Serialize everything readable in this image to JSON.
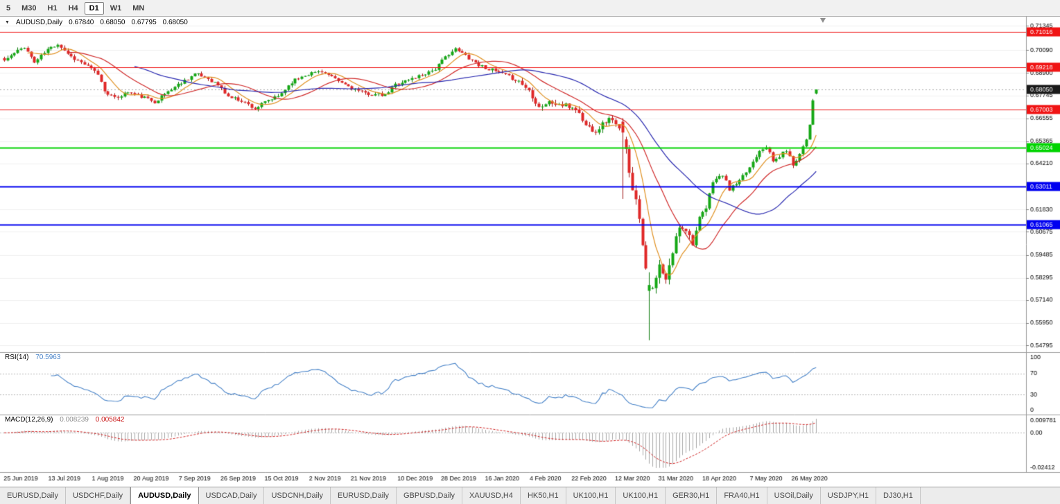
{
  "ui": {
    "toolbar": {
      "timeframes": [
        {
          "label": "5",
          "active": false
        },
        {
          "label": "M30",
          "active": false
        },
        {
          "label": "H1",
          "active": false
        },
        {
          "label": "H4",
          "active": false
        },
        {
          "label": "D1",
          "active": true
        },
        {
          "label": "W1",
          "active": false
        },
        {
          "label": "MN",
          "active": false
        }
      ]
    },
    "chart_title": {
      "symbol": "AUDUSD,Daily",
      "open": "0.67840",
      "high": "0.68050",
      "low": "0.67795",
      "close": "0.68050"
    },
    "rsi_title": {
      "name": "RSI(14)",
      "value": "70.5963"
    },
    "macd_title": {
      "name": "MACD(12,26,9)",
      "value_main": "0.008239",
      "value_signal": "0.005842"
    },
    "tabs": {
      "active_index": 2,
      "items": [
        "EURUSD,Daily",
        "USDCHF,Daily",
        "AUDUSD,Daily",
        "USDCAD,Daily",
        "USDCNH,Daily",
        "EURUSD,Daily",
        "GBPUSD,Daily",
        "XAUUSD,H4",
        "HK50,H1",
        "UK100,H1",
        "UK100,H1",
        "GER30,H1",
        "FRA40,H1",
        "USOil,Daily",
        "USDJPY,H1",
        "DJ30,H1"
      ]
    }
  },
  "chart_data": {
    "type": "candlestick",
    "symbol": "AUDUSD",
    "timeframe": "Daily",
    "main": {
      "price_range": [
        0.5455,
        0.7175
      ],
      "y_axis_labels": [
        {
          "text": "0.71345",
          "value": 0.71345
        },
        {
          "text": "0.70090",
          "value": 0.7009
        },
        {
          "text": "0.68900",
          "value": 0.689
        },
        {
          "text": "0.67745",
          "value": 0.67745
        },
        {
          "text": "0.66555",
          "value": 0.66555
        },
        {
          "text": "0.65365",
          "value": 0.65365
        },
        {
          "text": "0.64210",
          "value": 0.6421
        },
        {
          "text": "0.61830",
          "value": 0.6183
        },
        {
          "text": "0.60675",
          "value": 0.60675
        },
        {
          "text": "0.59485",
          "value": 0.59485
        },
        {
          "text": "0.58295",
          "value": 0.58295
        },
        {
          "text": "0.57140",
          "value": 0.5714
        },
        {
          "text": "0.55950",
          "value": 0.5595
        },
        {
          "text": "0.54795",
          "value": 0.54795
        }
      ],
      "x_labels": [
        {
          "idx": 5,
          "text": "25 Jun 2019"
        },
        {
          "idx": 18,
          "text": "13 Jul 2019"
        },
        {
          "idx": 31,
          "text": "1 Aug 2019"
        },
        {
          "idx": 44,
          "text": "20 Aug 2019"
        },
        {
          "idx": 57,
          "text": "7 Sep 2019"
        },
        {
          "idx": 70,
          "text": "26 Sep 2019"
        },
        {
          "idx": 83,
          "text": "15 Oct 2019"
        },
        {
          "idx": 96,
          "text": "2 Nov 2019"
        },
        {
          "idx": 109,
          "text": "21 Nov 2019"
        },
        {
          "idx": 123,
          "text": "10 Dec 2019"
        },
        {
          "idx": 136,
          "text": "28 Dec 2019"
        },
        {
          "idx": 149,
          "text": "16 Jan 2020"
        },
        {
          "idx": 162,
          "text": "4 Feb 2020"
        },
        {
          "idx": 175,
          "text": "22 Feb 2020"
        },
        {
          "idx": 188,
          "text": "12 Mar 2020"
        },
        {
          "idx": 201,
          "text": "31 Mar 2020"
        },
        {
          "idx": 214,
          "text": "18 Apr 2020"
        },
        {
          "idx": 228,
          "text": "7 May 2020"
        },
        {
          "idx": 241,
          "text": "26 May 2020"
        }
      ],
      "horizontal_lines": [
        {
          "price": 0.71016,
          "label": "0.71016",
          "color": "#f01414",
          "width": 1
        },
        {
          "price": 0.69218,
          "label": "0.69218",
          "color": "#f01414",
          "width": 1
        },
        {
          "price": 0.67003,
          "label": "0.67003",
          "color": "#f01414",
          "width": 1
        },
        {
          "price": 0.65024,
          "label": "0.65024",
          "color": "#00d400",
          "width": 2
        },
        {
          "price": 0.63011,
          "label": "0.63011",
          "color": "#0000f0",
          "width": 2
        },
        {
          "price": 0.61065,
          "label": "0.61065",
          "color": "#0000f0",
          "width": 2
        }
      ],
      "current_price": {
        "value": 0.6805,
        "label": "0.68050",
        "badge_color": "#1a1a1a"
      },
      "candles": {
        "count": 244,
        "seed": 11,
        "up_color": "#16a816",
        "up_border": "#0c7a0c",
        "down_color": "#e02828",
        "down_border": "#9e1212",
        "close_anchors": [
          [
            0,
            0.6955
          ],
          [
            3,
            0.6992
          ],
          [
            6,
            0.7028
          ],
          [
            9,
            0.6945
          ],
          [
            13,
            0.7012
          ],
          [
            16,
            0.7042
          ],
          [
            20,
            0.6975
          ],
          [
            24,
            0.6935
          ],
          [
            28,
            0.6885
          ],
          [
            30,
            0.68
          ],
          [
            33,
            0.6758
          ],
          [
            37,
            0.6792
          ],
          [
            41,
            0.6768
          ],
          [
            45,
            0.6742
          ],
          [
            49,
            0.6795
          ],
          [
            53,
            0.6842
          ],
          [
            57,
            0.6885
          ],
          [
            61,
            0.6862
          ],
          [
            64,
            0.6828
          ],
          [
            67,
            0.6768
          ],
          [
            71,
            0.6748
          ],
          [
            75,
            0.6706
          ],
          [
            79,
            0.6748
          ],
          [
            82,
            0.6768
          ],
          [
            86,
            0.6845
          ],
          [
            90,
            0.6882
          ],
          [
            95,
            0.6902
          ],
          [
            99,
            0.6855
          ],
          [
            103,
            0.6822
          ],
          [
            107,
            0.6788
          ],
          [
            111,
            0.6778
          ],
          [
            114,
            0.6772
          ],
          [
            117,
            0.6832
          ],
          [
            121,
            0.6855
          ],
          [
            125,
            0.6882
          ],
          [
            129,
            0.6912
          ],
          [
            133,
            0.6992
          ],
          [
            135,
            0.7012
          ],
          [
            138,
            0.6982
          ],
          [
            142,
            0.6932
          ],
          [
            146,
            0.6905
          ],
          [
            150,
            0.6878
          ],
          [
            154,
            0.6848
          ],
          [
            157,
            0.68
          ],
          [
            160,
            0.6716
          ],
          [
            163,
            0.6738
          ],
          [
            167,
            0.6722
          ],
          [
            171,
            0.6708
          ],
          [
            174,
            0.6618
          ],
          [
            177,
            0.6592
          ],
          [
            180,
            0.6642
          ],
          [
            182,
            0.6655
          ],
          [
            184,
            0.6588
          ],
          [
            186,
            0.6482
          ],
          [
            188,
            0.6302
          ],
          [
            190,
            0.6148
          ],
          [
            192,
            0.5885
          ],
          [
            193,
            0.5792
          ],
          [
            194,
            0.5758
          ],
          [
            196,
            0.5888
          ],
          [
            198,
            0.5808
          ],
          [
            200,
            0.5962
          ],
          [
            202,
            0.6102
          ],
          [
            204,
            0.6082
          ],
          [
            206,
            0.6012
          ],
          [
            208,
            0.6132
          ],
          [
            210,
            0.6188
          ],
          [
            212,
            0.6332
          ],
          [
            215,
            0.6362
          ],
          [
            217,
            0.6288
          ],
          [
            220,
            0.6328
          ],
          [
            223,
            0.6402
          ],
          [
            226,
            0.6492
          ],
          [
            228,
            0.6512
          ],
          [
            230,
            0.6432
          ],
          [
            232,
            0.6458
          ],
          [
            234,
            0.6492
          ],
          [
            236,
            0.6415
          ],
          [
            238,
            0.6472
          ],
          [
            240,
            0.6552
          ],
          [
            241,
            0.6625
          ],
          [
            242,
            0.6755
          ],
          [
            243,
            0.6805
          ]
        ],
        "overrides": [
          {
            "i": 185,
            "o": 0.6638,
            "h": 0.6656,
            "l": 0.6238,
            "c": 0.6582
          },
          {
            "i": 193,
            "o": 0.5762,
            "h": 0.5858,
            "l": 0.5506,
            "c": 0.5792
          },
          {
            "i": 243,
            "o": 0.6784,
            "h": 0.6805,
            "l": 0.67795,
            "c": 0.6805
          }
        ]
      },
      "moving_averages": [
        {
          "period": 8,
          "color": "#e09020"
        },
        {
          "period": 20,
          "color": "#d02828"
        },
        {
          "period": 40,
          "color": "#2828b0"
        }
      ]
    },
    "rsi": {
      "period": 14,
      "color": "#4682c8",
      "levels": [
        70,
        30
      ],
      "range": [
        0,
        100
      ],
      "axis_labels": [
        {
          "text": "100",
          "value": 100
        },
        {
          "text": "70",
          "value": 70
        },
        {
          "text": "30",
          "value": 30
        },
        {
          "text": "0",
          "value": 0
        }
      ]
    },
    "macd": {
      "fast": 12,
      "slow": 26,
      "signal": 9,
      "histogram_color": "#a8a8a8",
      "signal_color": "#d02020",
      "axis_labels": [
        {
          "text": "0.009781",
          "value": 0.009781
        },
        {
          "text": "0.00",
          "value": 0
        },
        {
          "text": "-0.02412",
          "value": -0.02412
        }
      ]
    }
  }
}
